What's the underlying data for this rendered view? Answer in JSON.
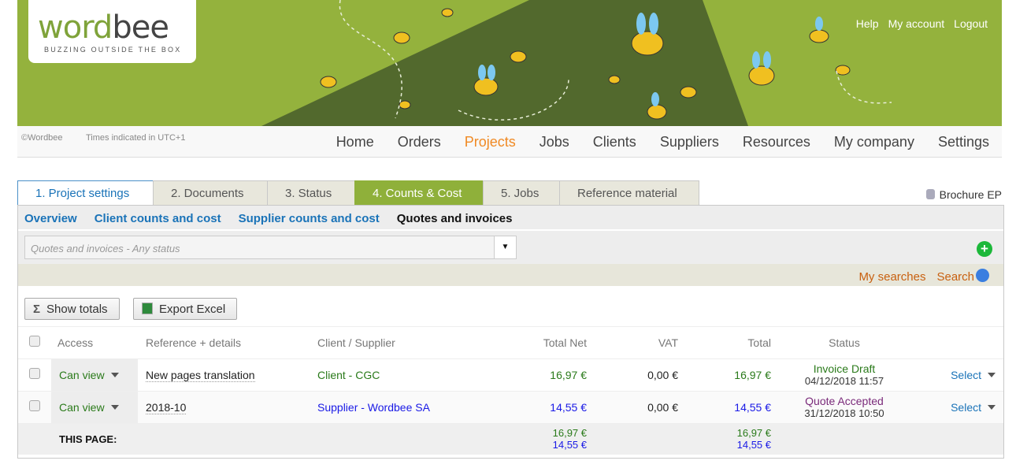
{
  "header": {
    "logo_word_1": "word",
    "logo_word_2": "bee",
    "tagline": "BUZZING OUTSIDE THE BOX",
    "links": [
      "Help",
      "My account",
      "Logout"
    ],
    "copyright": "©Wordbee",
    "timezone": "Times indicated in UTC+1"
  },
  "nav": {
    "items": [
      "Home",
      "Orders",
      "Projects",
      "Jobs",
      "Clients",
      "Suppliers",
      "Resources",
      "My company",
      "Settings"
    ],
    "active": "Projects"
  },
  "tabs": [
    "1. Project settings",
    "2. Documents",
    "3. Status",
    "4. Counts & Cost",
    "5. Jobs",
    "Reference material"
  ],
  "project_name": "Brochure EP",
  "subtabs": [
    "Overview",
    "Client counts and cost",
    "Supplier counts and cost",
    "Quotes and invoices"
  ],
  "filter": {
    "placeholder": "Quotes and invoices - Any status"
  },
  "search": {
    "my_searches": "My searches",
    "search": "Search"
  },
  "buttons": {
    "show_totals": "Show totals",
    "export_excel": "Export Excel"
  },
  "table": {
    "headers": [
      "Access",
      "Reference + details",
      "Client / Supplier",
      "Total Net",
      "VAT",
      "Total",
      "Status"
    ],
    "rows": [
      {
        "access": "Can view",
        "reference": "New pages translation",
        "party": "Client - CGC",
        "net": "16,97 €",
        "vat": "0,00 €",
        "total": "16,97 €",
        "status": "Invoice Draft",
        "date": "04/12/2018 11:57",
        "action": "Select"
      },
      {
        "access": "Can view",
        "reference": "2018-10",
        "party": "Supplier - Wordbee SA",
        "net": "14,55 €",
        "vat": "0,00 €",
        "total": "14,55 €",
        "status": "Quote Accepted",
        "date": "31/12/2018 10:50",
        "action": "Select"
      }
    ],
    "footer": {
      "label": "THIS PAGE:",
      "net": [
        "16,97 €",
        "14,55 €"
      ],
      "total": [
        "16,97 €",
        "14,55 €"
      ]
    }
  },
  "colors": {
    "brand_green": "#94b23d",
    "active_nav": "#f08a24",
    "link_blue": "#1a73b8",
    "client_green": "#2a7a1a",
    "supplier_blue": "#1a1ae6"
  }
}
